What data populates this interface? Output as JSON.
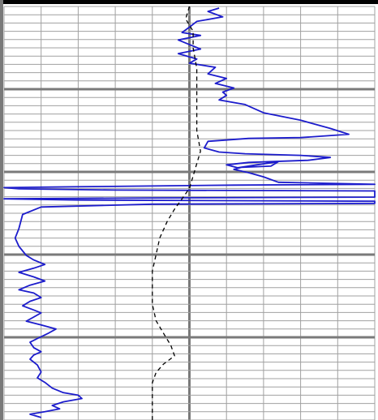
{
  "chart_data": {
    "type": "line",
    "title": "",
    "xlabel": "",
    "ylabel": "",
    "grid": true,
    "legend": "none",
    "xlim": [
      0,
      100
    ],
    "ylim": [
      0,
      100
    ],
    "colors": {
      "background": "#ffffff",
      "grid_minor": "#a0a0a0",
      "grid_major": "#7a7a7a",
      "frame": "#000000",
      "solid_series": "#1c1ccc",
      "dashed_series": "#000000"
    },
    "series": [
      {
        "style": "solid",
        "color": "#1c1ccc",
        "points": [
          [
            58,
            0.4
          ],
          [
            55,
            1.2
          ],
          [
            59,
            2.5
          ],
          [
            52,
            3.6
          ],
          [
            50,
            5.0
          ],
          [
            48,
            6.3
          ],
          [
            53,
            7.0
          ],
          [
            47,
            8.1
          ],
          [
            50,
            9.2
          ],
          [
            53,
            10.3
          ],
          [
            47,
            11.4
          ],
          [
            52,
            12.7
          ],
          [
            50,
            13.7
          ],
          [
            57,
            14.7
          ],
          [
            55,
            16.3
          ],
          [
            60,
            17.4
          ],
          [
            57,
            18.6
          ],
          [
            62,
            19.7
          ],
          [
            59,
            20.7
          ],
          [
            60,
            21.5
          ],
          [
            58,
            22.6
          ],
          [
            65,
            23.7
          ],
          [
            70,
            25.7
          ],
          [
            80,
            27.5
          ],
          [
            88,
            29.5
          ],
          [
            93,
            30.9
          ],
          [
            80,
            31.7
          ],
          [
            66,
            31.9
          ],
          [
            55,
            32.6
          ],
          [
            54,
            34.2
          ],
          [
            58,
            35.2
          ],
          [
            65,
            35.6
          ],
          [
            80,
            36.0
          ],
          [
            88,
            36.5
          ],
          [
            82,
            37.2
          ],
          [
            66,
            37.7
          ],
          [
            60,
            38.3
          ],
          [
            63,
            39.0
          ],
          [
            74,
            37.5
          ],
          [
            72,
            38.6
          ],
          [
            64,
            38.9
          ],
          [
            62,
            39.4
          ],
          [
            66,
            40.2
          ],
          [
            70,
            41.2
          ],
          [
            74,
            42.5
          ],
          [
            100,
            43.0
          ],
          [
            62,
            43.2
          ],
          [
            18,
            43.6
          ],
          [
            0,
            43.8
          ],
          [
            4,
            44.1
          ],
          [
            30,
            44.4
          ],
          [
            100,
            44.6
          ],
          [
            100,
            46.1
          ],
          [
            40,
            46.3
          ],
          [
            0,
            46.5
          ],
          [
            20,
            46.8
          ],
          [
            100,
            47.1
          ],
          [
            100,
            47.6
          ],
          [
            40,
            47.8
          ],
          [
            10,
            48.5
          ],
          [
            5,
            50.3
          ],
          [
            4,
            53.7
          ],
          [
            3,
            56.0
          ],
          [
            4,
            58.0
          ],
          [
            6,
            60.2
          ],
          [
            8,
            61.3
          ],
          [
            11,
            62.4
          ],
          [
            8,
            63.3
          ],
          [
            4,
            64.3
          ],
          [
            8,
            65.4
          ],
          [
            11,
            66.4
          ],
          [
            7,
            67.4
          ],
          [
            4,
            68.5
          ],
          [
            8,
            69.3
          ],
          [
            10,
            70.4
          ],
          [
            7,
            71.3
          ],
          [
            5,
            72.4
          ],
          [
            8,
            73.4
          ],
          [
            10,
            74.1
          ],
          [
            8,
            75.1
          ],
          [
            6,
            76.1
          ],
          [
            10,
            77.0
          ],
          [
            14,
            78.0
          ],
          [
            12,
            79.0
          ],
          [
            9,
            80.3
          ],
          [
            7,
            81.2
          ],
          [
            8,
            82.5
          ],
          [
            10,
            83.5
          ],
          [
            8,
            84.3
          ],
          [
            7,
            85.3
          ],
          [
            9,
            86.7
          ],
          [
            10,
            88.4
          ],
          [
            9,
            89.8
          ],
          [
            11,
            90.9
          ],
          [
            13,
            92.3
          ],
          [
            16,
            93.4
          ],
          [
            20,
            94.0
          ],
          [
            21,
            94.8
          ],
          [
            16,
            95.6
          ],
          [
            13,
            96.5
          ],
          [
            15,
            97.3
          ],
          [
            11,
            98.0
          ],
          [
            7,
            98.6
          ],
          [
            10,
            99.4
          ]
        ]
      },
      {
        "style": "dashed",
        "color": "#000000",
        "points": [
          [
            50,
            0
          ],
          [
            49,
            3
          ],
          [
            51,
            6
          ],
          [
            51,
            10
          ],
          [
            52,
            15
          ],
          [
            52,
            20
          ],
          [
            52,
            25
          ],
          [
            52,
            30
          ],
          [
            53,
            35
          ],
          [
            52,
            38
          ],
          [
            51,
            41
          ],
          [
            50,
            44
          ],
          [
            48,
            46.5
          ],
          [
            46,
            49
          ],
          [
            44,
            52
          ],
          [
            42,
            56
          ],
          [
            41,
            60
          ],
          [
            40,
            64
          ],
          [
            40,
            68
          ],
          [
            40,
            72
          ],
          [
            41,
            76
          ],
          [
            43,
            79
          ],
          [
            45,
            82
          ],
          [
            46,
            84.5
          ],
          [
            43,
            86.5
          ],
          [
            41,
            88.5
          ],
          [
            40,
            91
          ],
          [
            40,
            94
          ],
          [
            40,
            97
          ],
          [
            40,
            100
          ]
        ]
      }
    ]
  }
}
